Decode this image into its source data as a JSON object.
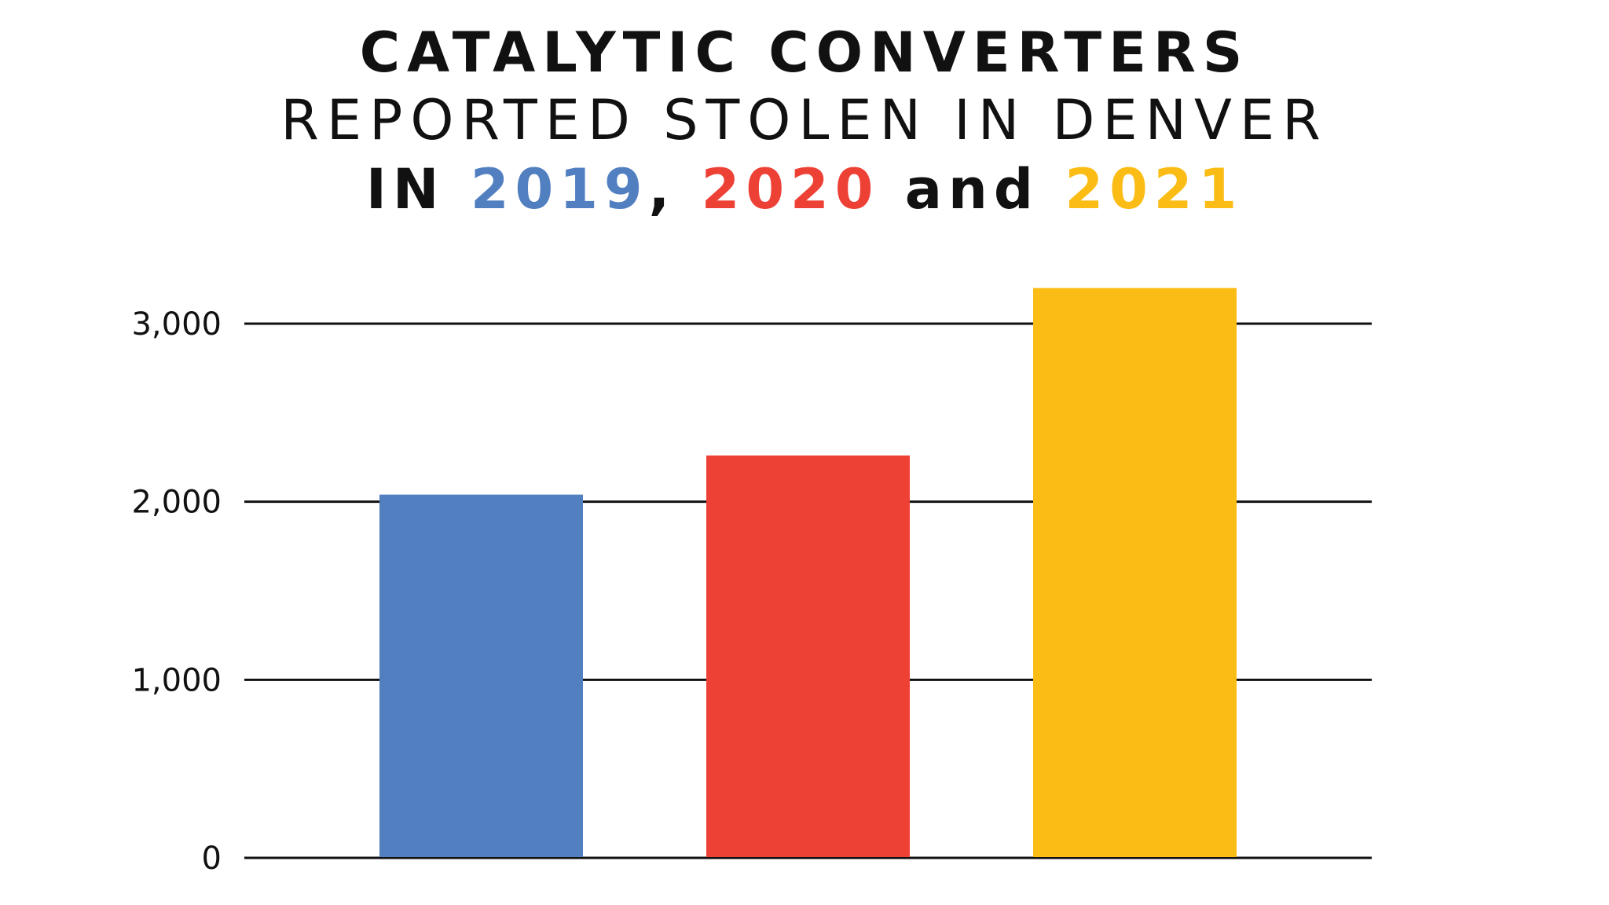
{
  "chart_data": {
    "type": "bar",
    "title_line1": "CATALYTIC CONVERTERS",
    "title_line2": "REPORTED STOLEN IN DENVER",
    "title_line3": {
      "prefix": "IN ",
      "year1": "2019",
      "sep1": ", ",
      "year2": "2020",
      "sep2": " and ",
      "year3": "2021"
    },
    "categories": [
      "2019",
      "2020",
      "2021"
    ],
    "values": [
      2040,
      2260,
      3200
    ],
    "colors": [
      "#517fc0",
      "#ee4136",
      "#fbbc15"
    ],
    "ylim": [
      0,
      3000
    ],
    "yticks": [
      0,
      1000,
      2000,
      3000
    ],
    "ytick_labels": [
      "0",
      "1,000",
      "2,000",
      "3,000"
    ],
    "grid": true,
    "xlabel": "",
    "ylabel": ""
  }
}
